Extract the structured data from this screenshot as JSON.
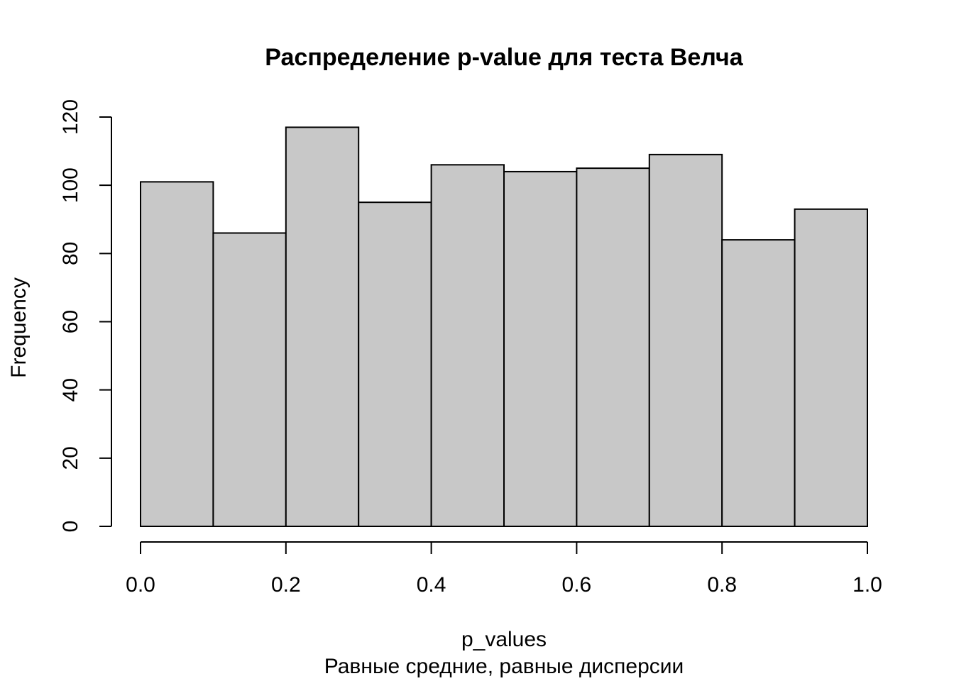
{
  "chart_data": {
    "type": "bar",
    "title": "Распределение p-value для теста Велча",
    "xlabel": "p_values",
    "subtitle": "Равные средние, равные дисперсии",
    "ylabel": "Frequency",
    "bins": [
      {
        "from": 0.0,
        "to": 0.1,
        "count": 101
      },
      {
        "from": 0.1,
        "to": 0.2,
        "count": 86
      },
      {
        "from": 0.2,
        "to": 0.3,
        "count": 117
      },
      {
        "from": 0.3,
        "to": 0.4,
        "count": 95
      },
      {
        "from": 0.4,
        "to": 0.5,
        "count": 106
      },
      {
        "from": 0.5,
        "to": 0.6,
        "count": 104
      },
      {
        "from": 0.6,
        "to": 0.7,
        "count": 105
      },
      {
        "from": 0.7,
        "to": 0.8,
        "count": 109
      },
      {
        "from": 0.8,
        "to": 0.9,
        "count": 84
      },
      {
        "from": 0.9,
        "to": 1.0,
        "count": 93
      }
    ],
    "xlim": [
      0.0,
      1.0
    ],
    "ylim": [
      0,
      120
    ],
    "x_ticks": [
      "0.0",
      "0.2",
      "0.4",
      "0.6",
      "0.8",
      "1.0"
    ],
    "y_ticks": [
      "0",
      "20",
      "40",
      "60",
      "80",
      "100",
      "120"
    ],
    "bar_color": "#c8c8c8",
    "edge_color": "#000000",
    "grid": false,
    "legend": "none"
  }
}
